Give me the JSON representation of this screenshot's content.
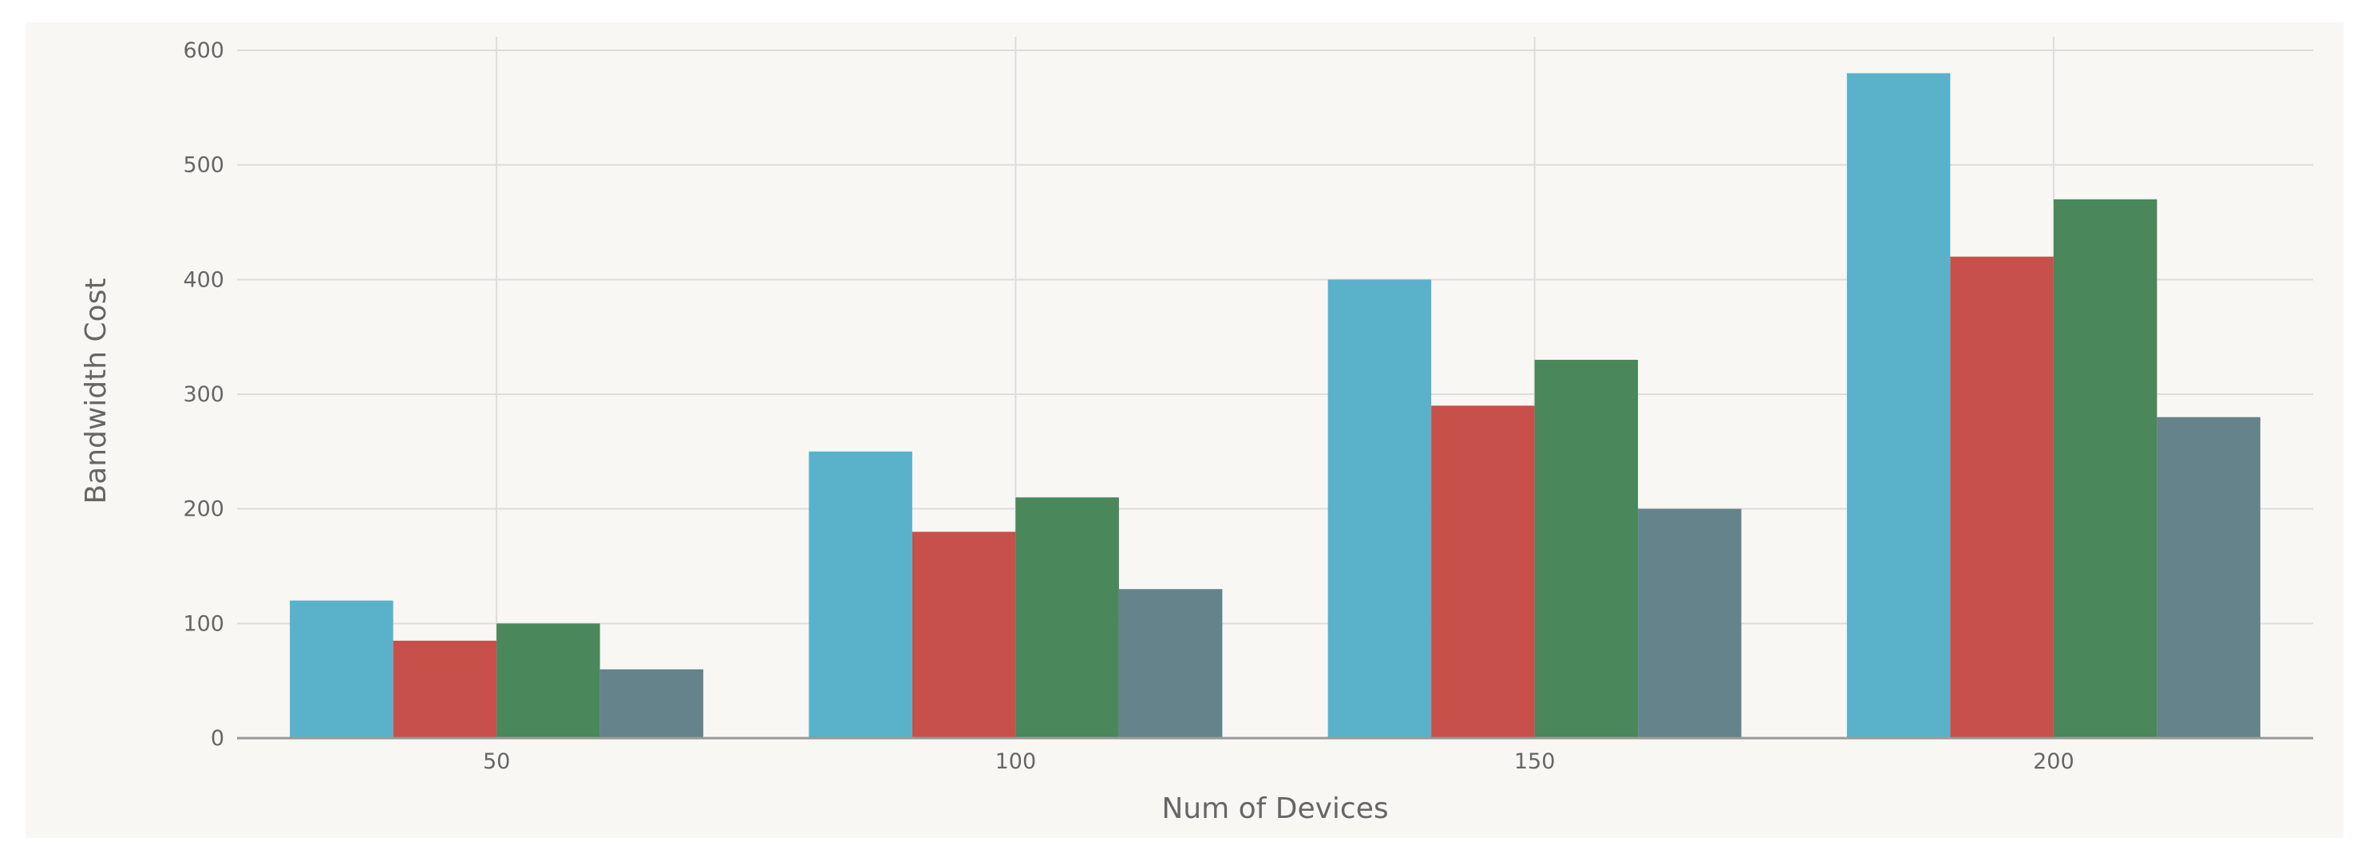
{
  "chart_data": {
    "type": "bar",
    "title": "",
    "xlabel": "Num of Devices",
    "ylabel": "Bandwidth Cost",
    "categories": [
      "50",
      "100",
      "150",
      "200"
    ],
    "series": [
      {
        "values": [
          120,
          250,
          400,
          580
        ]
      },
      {
        "values": [
          85,
          180,
          290,
          420
        ]
      },
      {
        "values": [
          100,
          210,
          330,
          470
        ]
      },
      {
        "values": [
          60,
          130,
          200,
          280
        ]
      }
    ],
    "ylim": [
      0,
      600
    ],
    "yticks": [
      0,
      100,
      200,
      300,
      400,
      500,
      600
    ],
    "grid": true,
    "legend": "none",
    "colors": {
      "series": [
        "#59b2c9",
        "#c8504b",
        "#4a875a",
        "#65838a"
      ],
      "background": "#f8f7f4",
      "grid": "#dddddd",
      "axis": "#999999",
      "text": "#666666"
    }
  }
}
